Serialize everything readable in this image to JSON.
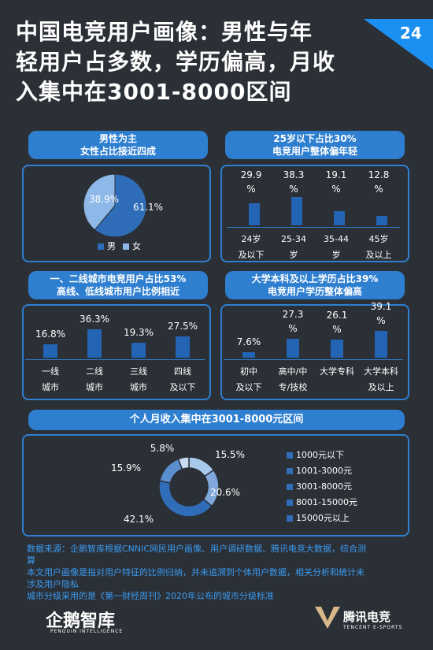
{
  "page": {
    "title_line1": "中国电竞用户画像：男性与年",
    "title_line2": "轻用户占多数，学历偏高，月收",
    "title_line3": "入集中在3001-8000区间",
    "page_number": "24"
  },
  "gender": {
    "head_line1": "男性为主",
    "head_line2": "女性占比接近四成",
    "legend_male": "男",
    "legend_female": "女"
  },
  "age": {
    "head_line1": "25岁以下占比30%",
    "head_line2": "电竞用户整体偏年轻",
    "labels": [
      [
        "24岁",
        "及以下"
      ],
      [
        "25-34",
        "岁"
      ],
      [
        "35-44",
        "岁"
      ],
      [
        "45岁",
        "及以上"
      ]
    ]
  },
  "city": {
    "head_line1": "一、二线城市电竞用户占比53%",
    "head_line2": "高线、低线城市用户比例相近",
    "labels": [
      [
        "一线",
        "城市"
      ],
      [
        "二线",
        "城市"
      ],
      [
        "三线",
        "城市"
      ],
      [
        "四线",
        "及以下"
      ]
    ]
  },
  "edu": {
    "head_line1": "大学本科及以上学历占比39%",
    "head_line2": "电竞用户学历整体偏高",
    "labels": [
      [
        "初中",
        "及以下"
      ],
      [
        "高中/中",
        "专/技校"
      ],
      [
        "大学专科",
        ""
      ],
      [
        "大学本科",
        "及以上"
      ]
    ]
  },
  "income": {
    "head": "个人月收入集中在3001-8000元区间",
    "legend": [
      "1000元以下",
      "1001-3000元",
      "3001-8000元",
      "8001-15000元",
      "15000元以上"
    ]
  },
  "footer": {
    "line1": "数据来源：企鹅智库根据CNNIC网民用户画像、用户调研数据、腾讯电竞大数据，综合测",
    "line2": "算",
    "line3": "本文用户画像是指对用户特征的比例归纳，并未追溯到个体用户数据，相关分析和统计未",
    "line4": "涉及用户隐私",
    "line5": "城市分级采用的是《第一财经周刊》2020年公布的城市分级标准"
  },
  "brands": {
    "left_logo": "企鹅智库",
    "left_sub": "PENGUIN INTELLIGENCE",
    "right_logo": "腾讯电竞",
    "right_sub": "TENCENT E-SPORTS"
  },
  "colors": {
    "background": "#2b2f36",
    "accent": "#2f7fd0",
    "bar": "#2464b4",
    "pie_male": "#2f6db8",
    "pie_female": "#8eb8e8",
    "footer_text": "#3b9bf0",
    "income_slices": [
      "#a8c8ec",
      "#7fa8dc",
      "#2f6db8",
      "#5a8fd0",
      "#c9dcf3"
    ]
  },
  "chart_data": [
    {
      "type": "pie",
      "categories": [
        "男",
        "女"
      ],
      "values": [
        61.1,
        38.9
      ],
      "value_labels": [
        "61.1%",
        "38.9%"
      ]
    },
    {
      "type": "bar",
      "categories": [
        "24岁及以下",
        "25-34岁",
        "35-44岁",
        "45岁及以上"
      ],
      "values": [
        29.9,
        38.3,
        19.1,
        12.8
      ],
      "value_labels": [
        [
          "29.9",
          "%"
        ],
        [
          "38.3",
          "%"
        ],
        [
          "19.1",
          "%"
        ],
        [
          "12.8",
          "%"
        ]
      ]
    },
    {
      "type": "bar",
      "categories": [
        "一线城市",
        "二线城市",
        "三线城市",
        "四线及以下"
      ],
      "values": [
        16.8,
        36.3,
        19.3,
        27.5
      ],
      "value_labels": [
        [
          "16.8%"
        ],
        [
          "36.3%"
        ],
        [
          "19.3%"
        ],
        [
          "27.5%"
        ]
      ]
    },
    {
      "type": "bar",
      "categories": [
        "初中及以下",
        "高中/中专/技校",
        "大学专科",
        "大学本科及以上"
      ],
      "values": [
        7.6,
        27.3,
        26.1,
        39.1
      ],
      "value_labels": [
        [
          "7.6%"
        ],
        [
          "27.3",
          "%"
        ],
        [
          "26.1",
          "%"
        ],
        [
          "39.1",
          "%"
        ]
      ]
    },
    {
      "type": "pie",
      "subtype": "donut",
      "categories": [
        "1000元以下",
        "1001-3000元",
        "3001-8000元",
        "8001-15000元",
        "15000元以上"
      ],
      "values": [
        15.5,
        20.6,
        42.1,
        15.9,
        5.8
      ],
      "value_labels": [
        "15.5%",
        "20.6%",
        "42.1%",
        "15.9%",
        "5.8%"
      ]
    }
  ]
}
